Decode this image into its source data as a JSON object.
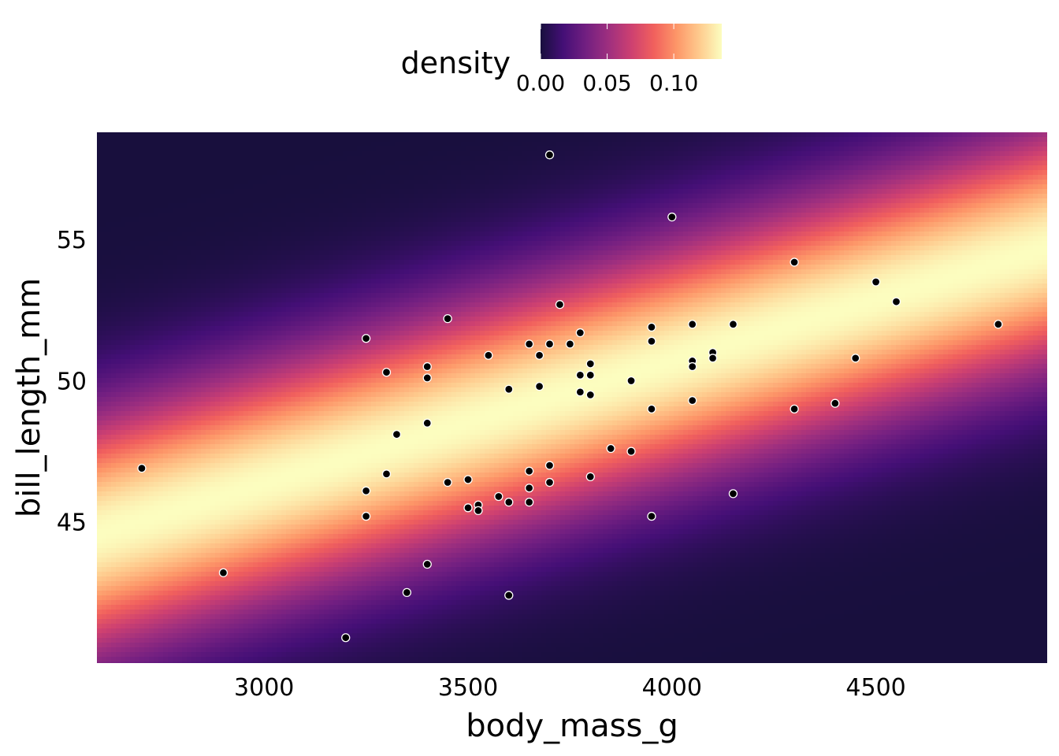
{
  "chart_data": {
    "type": "scatter",
    "title": "",
    "xlabel": "body_mass_g",
    "ylabel": "bill_length_mm",
    "xlim": [
      2590,
      4920
    ],
    "ylim": [
      40.0,
      58.8
    ],
    "x_ticks": [
      3000,
      3500,
      4000,
      4500
    ],
    "x_tick_labels": [
      "3000",
      "3500",
      "4000",
      "4500"
    ],
    "y_ticks": [
      45,
      50,
      55
    ],
    "y_tick_labels": [
      "45",
      "50",
      "55"
    ],
    "grid": false,
    "background": "density heatmap (2D Gaussian band along regression line)",
    "legend": {
      "title": "density",
      "position": "top",
      "ticks": [
        0.0,
        0.05,
        0.1
      ],
      "tick_labels": [
        "0.00",
        "0.05",
        "0.10"
      ],
      "range": [
        0.0,
        0.136
      ],
      "colormap": "magma",
      "colors": [
        "#180f3d",
        "#440f76",
        "#721f81",
        "#9e2f7f",
        "#cd4071",
        "#f1605d",
        "#fd9668",
        "#feca8d",
        "#fcfdbf"
      ]
    },
    "density_model": {
      "slope_mm_per_g": 0.00435,
      "intercept_mm": 33.28,
      "sigma_mm": 2.95,
      "peak": 0.136
    },
    "point_style": {
      "fill": "#000000",
      "stroke": "#ffffff"
    },
    "points": [
      {
        "x": 2700,
        "y": 46.9
      },
      {
        "x": 2900,
        "y": 43.2
      },
      {
        "x": 3200,
        "y": 40.9
      },
      {
        "x": 3250,
        "y": 51.5
      },
      {
        "x": 3250,
        "y": 46.1
      },
      {
        "x": 3250,
        "y": 45.2
      },
      {
        "x": 3300,
        "y": 50.3
      },
      {
        "x": 3300,
        "y": 46.7
      },
      {
        "x": 3325,
        "y": 48.1
      },
      {
        "x": 3350,
        "y": 42.5
      },
      {
        "x": 3400,
        "y": 50.5
      },
      {
        "x": 3400,
        "y": 50.1
      },
      {
        "x": 3400,
        "y": 48.5
      },
      {
        "x": 3400,
        "y": 43.5
      },
      {
        "x": 3450,
        "y": 52.2
      },
      {
        "x": 3450,
        "y": 46.4
      },
      {
        "x": 3500,
        "y": 46.5
      },
      {
        "x": 3500,
        "y": 45.5
      },
      {
        "x": 3525,
        "y": 45.6
      },
      {
        "x": 3525,
        "y": 45.4
      },
      {
        "x": 3550,
        "y": 50.9
      },
      {
        "x": 3575,
        "y": 45.9
      },
      {
        "x": 3600,
        "y": 49.7
      },
      {
        "x": 3600,
        "y": 45.7
      },
      {
        "x": 3600,
        "y": 42.4
      },
      {
        "x": 3650,
        "y": 51.3
      },
      {
        "x": 3650,
        "y": 46.8
      },
      {
        "x": 3650,
        "y": 46.2
      },
      {
        "x": 3650,
        "y": 45.7
      },
      {
        "x": 3675,
        "y": 50.9
      },
      {
        "x": 3675,
        "y": 49.8
      },
      {
        "x": 3700,
        "y": 58.0
      },
      {
        "x": 3700,
        "y": 51.3
      },
      {
        "x": 3700,
        "y": 47.0
      },
      {
        "x": 3700,
        "y": 46.4
      },
      {
        "x": 3725,
        "y": 52.7
      },
      {
        "x": 3750,
        "y": 51.3
      },
      {
        "x": 3775,
        "y": 51.7
      },
      {
        "x": 3775,
        "y": 50.2
      },
      {
        "x": 3775,
        "y": 49.6
      },
      {
        "x": 3800,
        "y": 50.6
      },
      {
        "x": 3800,
        "y": 50.2
      },
      {
        "x": 3800,
        "y": 49.5
      },
      {
        "x": 3800,
        "y": 46.6
      },
      {
        "x": 3850,
        "y": 47.6
      },
      {
        "x": 3900,
        "y": 50.0
      },
      {
        "x": 3900,
        "y": 47.5
      },
      {
        "x": 3950,
        "y": 51.9
      },
      {
        "x": 3950,
        "y": 51.4
      },
      {
        "x": 3950,
        "y": 49.0
      },
      {
        "x": 3950,
        "y": 45.2
      },
      {
        "x": 4000,
        "y": 55.8
      },
      {
        "x": 4050,
        "y": 52.0
      },
      {
        "x": 4050,
        "y": 50.7
      },
      {
        "x": 4050,
        "y": 50.5
      },
      {
        "x": 4050,
        "y": 49.3
      },
      {
        "x": 4100,
        "y": 51.0
      },
      {
        "x": 4100,
        "y": 50.8
      },
      {
        "x": 4150,
        "y": 52.0
      },
      {
        "x": 4150,
        "y": 46.0
      },
      {
        "x": 4300,
        "y": 54.2
      },
      {
        "x": 4300,
        "y": 49.0
      },
      {
        "x": 4400,
        "y": 49.2
      },
      {
        "x": 4450,
        "y": 50.8
      },
      {
        "x": 4500,
        "y": 53.5
      },
      {
        "x": 4550,
        "y": 52.8
      },
      {
        "x": 4800,
        "y": 52.0
      }
    ]
  }
}
